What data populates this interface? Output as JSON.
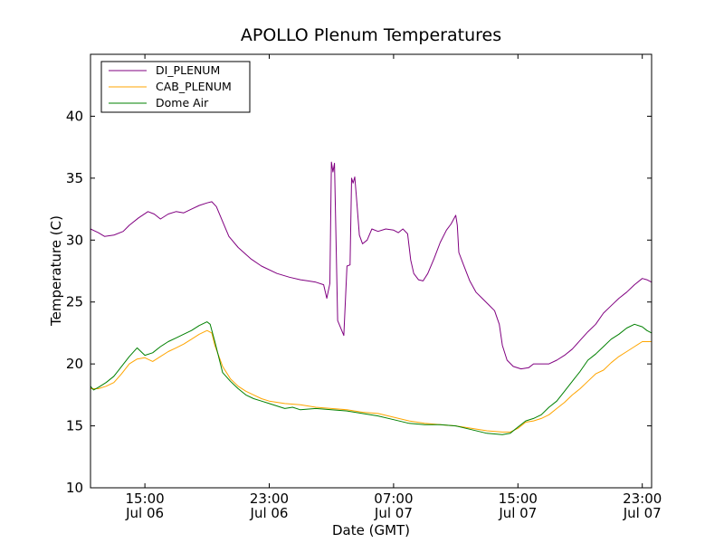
{
  "chart_data": {
    "type": "line",
    "title": "APOLLO Plenum Temperatures",
    "xlabel": "Date (GMT)",
    "ylabel": "Temperature (C)",
    "xlim": [
      11.5,
      47.6
    ],
    "ylim": [
      10,
      45
    ],
    "yticks": [
      10,
      15,
      20,
      25,
      30,
      35,
      40
    ],
    "xticks": [
      {
        "x": 15,
        "time": "15:00",
        "date": "Jul 06"
      },
      {
        "x": 23,
        "time": "23:00",
        "date": "Jul 06"
      },
      {
        "x": 31,
        "time": "07:00",
        "date": "Jul 07"
      },
      {
        "x": 39,
        "time": "15:00",
        "date": "Jul 07"
      },
      {
        "x": 47,
        "time": "23:00",
        "date": "Jul 07"
      }
    ],
    "legend_position": "top-left",
    "series": [
      {
        "name": "DI_PLENUM",
        "color": "#800080",
        "points": [
          [
            11.5,
            30.9
          ],
          [
            12.0,
            30.6
          ],
          [
            12.4,
            30.3
          ],
          [
            13.0,
            30.4
          ],
          [
            13.6,
            30.7
          ],
          [
            14.0,
            31.2
          ],
          [
            14.6,
            31.8
          ],
          [
            15.2,
            32.3
          ],
          [
            15.6,
            32.1
          ],
          [
            16.0,
            31.7
          ],
          [
            16.5,
            32.1
          ],
          [
            17.0,
            32.3
          ],
          [
            17.5,
            32.2
          ],
          [
            18.0,
            32.5
          ],
          [
            18.5,
            32.8
          ],
          [
            19.0,
            33.0
          ],
          [
            19.3,
            33.1
          ],
          [
            19.6,
            32.7
          ],
          [
            20.0,
            31.5
          ],
          [
            20.4,
            30.3
          ],
          [
            21.0,
            29.4
          ],
          [
            21.8,
            28.5
          ],
          [
            22.5,
            27.9
          ],
          [
            23.5,
            27.3
          ],
          [
            24.3,
            27.0
          ],
          [
            25.0,
            26.8
          ],
          [
            25.5,
            26.7
          ],
          [
            26.0,
            26.6
          ],
          [
            26.5,
            26.4
          ],
          [
            26.7,
            25.3
          ],
          [
            26.9,
            26.5
          ],
          [
            27.0,
            36.3
          ],
          [
            27.1,
            35.5
          ],
          [
            27.2,
            36.2
          ],
          [
            27.4,
            23.5
          ],
          [
            27.8,
            22.3
          ],
          [
            28.0,
            27.9
          ],
          [
            28.2,
            28.0
          ],
          [
            28.3,
            35.0
          ],
          [
            28.4,
            34.6
          ],
          [
            28.5,
            35.1
          ],
          [
            28.6,
            33.6
          ],
          [
            28.8,
            30.4
          ],
          [
            29.0,
            29.7
          ],
          [
            29.3,
            30.0
          ],
          [
            29.6,
            30.9
          ],
          [
            30.0,
            30.7
          ],
          [
            30.5,
            30.9
          ],
          [
            31.0,
            30.8
          ],
          [
            31.3,
            30.6
          ],
          [
            31.6,
            30.9
          ],
          [
            31.9,
            30.5
          ],
          [
            32.1,
            28.4
          ],
          [
            32.3,
            27.3
          ],
          [
            32.6,
            26.8
          ],
          [
            32.9,
            26.7
          ],
          [
            33.2,
            27.3
          ],
          [
            33.6,
            28.5
          ],
          [
            34.0,
            29.8
          ],
          [
            34.4,
            30.8
          ],
          [
            34.7,
            31.3
          ],
          [
            35.0,
            32.0
          ],
          [
            35.1,
            31.2
          ],
          [
            35.2,
            29.0
          ],
          [
            35.5,
            28.0
          ],
          [
            35.9,
            26.7
          ],
          [
            36.3,
            25.8
          ],
          [
            36.7,
            25.3
          ],
          [
            37.1,
            24.8
          ],
          [
            37.5,
            24.3
          ],
          [
            37.8,
            23.2
          ],
          [
            38.0,
            21.5
          ],
          [
            38.3,
            20.3
          ],
          [
            38.7,
            19.8
          ],
          [
            39.2,
            19.6
          ],
          [
            39.7,
            19.7
          ],
          [
            40.0,
            20.0
          ],
          [
            40.5,
            20.0
          ],
          [
            41.0,
            20.0
          ],
          [
            41.5,
            20.3
          ],
          [
            42.0,
            20.7
          ],
          [
            42.5,
            21.2
          ],
          [
            43.0,
            21.9
          ],
          [
            43.5,
            22.6
          ],
          [
            44.0,
            23.2
          ],
          [
            44.5,
            24.1
          ],
          [
            45.0,
            24.7
          ],
          [
            45.5,
            25.3
          ],
          [
            46.0,
            25.8
          ],
          [
            46.5,
            26.4
          ],
          [
            47.0,
            26.9
          ],
          [
            47.3,
            26.8
          ],
          [
            47.6,
            26.6
          ]
        ]
      },
      {
        "name": "CAB_PLENUM",
        "color": "#ffa500",
        "points": [
          [
            11.5,
            18.0
          ],
          [
            12.0,
            18.0
          ],
          [
            12.5,
            18.2
          ],
          [
            13.0,
            18.5
          ],
          [
            13.5,
            19.2
          ],
          [
            14.0,
            20.0
          ],
          [
            14.5,
            20.4
          ],
          [
            15.0,
            20.5
          ],
          [
            15.5,
            20.2
          ],
          [
            16.0,
            20.6
          ],
          [
            16.5,
            21.0
          ],
          [
            17.0,
            21.3
          ],
          [
            17.5,
            21.6
          ],
          [
            18.0,
            22.0
          ],
          [
            18.5,
            22.4
          ],
          [
            19.0,
            22.7
          ],
          [
            19.3,
            22.5
          ],
          [
            19.5,
            21.5
          ],
          [
            20.0,
            19.8
          ],
          [
            20.5,
            18.8
          ],
          [
            21.0,
            18.2
          ],
          [
            21.5,
            17.8
          ],
          [
            22.0,
            17.5
          ],
          [
            22.5,
            17.2
          ],
          [
            23.0,
            17.0
          ],
          [
            24.0,
            16.8
          ],
          [
            25.0,
            16.7
          ],
          [
            26.0,
            16.5
          ],
          [
            27.0,
            16.4
          ],
          [
            28.0,
            16.3
          ],
          [
            29.0,
            16.1
          ],
          [
            30.0,
            16.0
          ],
          [
            31.0,
            15.7
          ],
          [
            32.0,
            15.4
          ],
          [
            33.0,
            15.2
          ],
          [
            34.0,
            15.1
          ],
          [
            35.0,
            15.0
          ],
          [
            36.0,
            14.8
          ],
          [
            37.0,
            14.6
          ],
          [
            38.0,
            14.5
          ],
          [
            38.5,
            14.5
          ],
          [
            39.0,
            14.8
          ],
          [
            39.5,
            15.3
          ],
          [
            40.0,
            15.4
          ],
          [
            40.5,
            15.6
          ],
          [
            41.0,
            15.9
          ],
          [
            41.5,
            16.4
          ],
          [
            42.0,
            16.9
          ],
          [
            42.5,
            17.5
          ],
          [
            43.0,
            18.0
          ],
          [
            43.5,
            18.6
          ],
          [
            44.0,
            19.2
          ],
          [
            44.5,
            19.5
          ],
          [
            45.0,
            20.1
          ],
          [
            45.5,
            20.6
          ],
          [
            46.0,
            21.0
          ],
          [
            46.5,
            21.4
          ],
          [
            47.0,
            21.8
          ],
          [
            47.6,
            21.8
          ]
        ]
      },
      {
        "name": "Dome Air",
        "color": "#008000",
        "points": [
          [
            11.5,
            18.2
          ],
          [
            11.7,
            17.9
          ],
          [
            12.0,
            18.1
          ],
          [
            12.5,
            18.5
          ],
          [
            13.0,
            19.0
          ],
          [
            13.5,
            19.8
          ],
          [
            14.0,
            20.6
          ],
          [
            14.5,
            21.3
          ],
          [
            15.0,
            20.7
          ],
          [
            15.5,
            20.9
          ],
          [
            16.0,
            21.4
          ],
          [
            16.5,
            21.8
          ],
          [
            17.0,
            22.1
          ],
          [
            17.5,
            22.4
          ],
          [
            18.0,
            22.7
          ],
          [
            18.5,
            23.1
          ],
          [
            19.0,
            23.4
          ],
          [
            19.2,
            23.2
          ],
          [
            19.5,
            21.8
          ],
          [
            20.0,
            19.3
          ],
          [
            20.5,
            18.6
          ],
          [
            21.0,
            18.0
          ],
          [
            21.5,
            17.5
          ],
          [
            22.0,
            17.2
          ],
          [
            22.5,
            17.0
          ],
          [
            23.0,
            16.8
          ],
          [
            24.0,
            16.4
          ],
          [
            24.5,
            16.5
          ],
          [
            25.0,
            16.3
          ],
          [
            26.0,
            16.4
          ],
          [
            27.0,
            16.3
          ],
          [
            28.0,
            16.2
          ],
          [
            29.0,
            16.0
          ],
          [
            30.0,
            15.8
          ],
          [
            31.0,
            15.5
          ],
          [
            32.0,
            15.2
          ],
          [
            33.0,
            15.1
          ],
          [
            34.0,
            15.1
          ],
          [
            35.0,
            15.0
          ],
          [
            36.0,
            14.7
          ],
          [
            37.0,
            14.4
          ],
          [
            38.0,
            14.3
          ],
          [
            38.5,
            14.4
          ],
          [
            39.0,
            14.9
          ],
          [
            39.5,
            15.4
          ],
          [
            40.0,
            15.6
          ],
          [
            40.5,
            15.9
          ],
          [
            41.0,
            16.5
          ],
          [
            41.5,
            17.0
          ],
          [
            42.0,
            17.8
          ],
          [
            42.5,
            18.6
          ],
          [
            43.0,
            19.4
          ],
          [
            43.5,
            20.3
          ],
          [
            44.0,
            20.8
          ],
          [
            44.5,
            21.4
          ],
          [
            45.0,
            22.0
          ],
          [
            45.5,
            22.4
          ],
          [
            46.0,
            22.9
          ],
          [
            46.5,
            23.2
          ],
          [
            47.0,
            23.0
          ],
          [
            47.3,
            22.7
          ],
          [
            47.6,
            22.5
          ]
        ]
      }
    ]
  }
}
